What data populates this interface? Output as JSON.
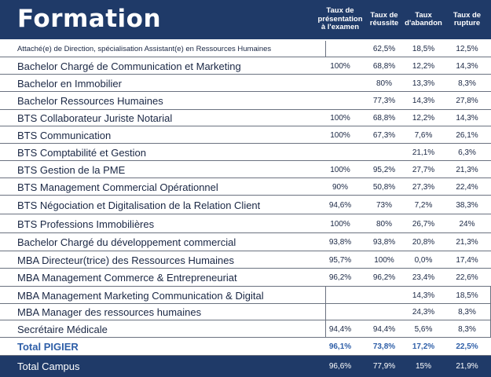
{
  "title": "Formation",
  "columns": [
    "Taux de\nprésentation\nà l'examen",
    "Taux de\nréussite",
    "Taux\nd'abandon",
    "Taux de\nrupture"
  ],
  "rows": [
    {
      "label": "Attaché(e) de Direction, spécialisation Assistant(e) en Ressources Humaines",
      "presentation": "",
      "reussite": "62,5%",
      "abandon": "18,5%",
      "rupture": "12,5%"
    },
    {
      "label": "Bachelor Chargé de Communication et Marketing",
      "presentation": "100%",
      "reussite": "68,8%",
      "abandon": "12,2%",
      "rupture": "14,3%"
    },
    {
      "label": "Bachelor en Immobilier",
      "presentation": "",
      "reussite": "80%",
      "abandon": "13,3%",
      "rupture": "8,3%"
    },
    {
      "label": "Bachelor Ressources Humaines",
      "presentation": "",
      "reussite": "77,3%",
      "abandon": "14,3%",
      "rupture": "27,8%"
    },
    {
      "label": "BTS Collaborateur Juriste Notarial",
      "presentation": "100%",
      "reussite": "68,8%",
      "abandon": "12,2%",
      "rupture": "14,3%"
    },
    {
      "label": "BTS Communication",
      "presentation": "100%",
      "reussite": "67,3%",
      "abandon": "7,6%",
      "rupture": "26,1%"
    },
    {
      "label": "BTS Comptabilité et Gestion",
      "presentation": "",
      "reussite": "",
      "abandon": "21,1%",
      "rupture": "6,3%"
    },
    {
      "label": "BTS Gestion de la PME",
      "presentation": "100%",
      "reussite": "95,2%",
      "abandon": "27,7%",
      "rupture": "21,3%"
    },
    {
      "label": "BTS Management Commercial Opérationnel",
      "presentation": "90%",
      "reussite": "50,8%",
      "abandon": "27,3%",
      "rupture": "22,4%"
    },
    {
      "label": "BTS Négociation et Digitalisation de la Relation Client",
      "presentation": "94,6%",
      "reussite": "73%",
      "abandon": "7,2%",
      "rupture": "38,3%"
    },
    {
      "label": "BTS Professions Immobilières",
      "presentation": "100%",
      "reussite": "80%",
      "abandon": "26,7%",
      "rupture": "24%"
    },
    {
      "label": "Bachelor Chargé du développement commercial",
      "presentation": "93,8%",
      "reussite": "93,8%",
      "abandon": "20,8%",
      "rupture": "21,3%"
    },
    {
      "label": "MBA Directeur(trice) des Ressources Humaines",
      "presentation": "95,7%",
      "reussite": "100%",
      "abandon": "0,0%",
      "rupture": "17,4%"
    },
    {
      "label": "MBA Management Commerce & Entrepreneuriat",
      "presentation": "96,2%",
      "reussite": "96,2%",
      "abandon": "23,4%",
      "rupture": "22,6%"
    },
    {
      "label": "MBA Management Marketing Communication & Digital",
      "presentation": "",
      "reussite": "",
      "abandon": "14,3%",
      "rupture": "18,5%"
    },
    {
      "label": "MBA Manager des ressources humaines",
      "presentation": "",
      "reussite": "",
      "abandon": "24,3%",
      "rupture": "8,3%"
    },
    {
      "label": "Secrétaire Médicale",
      "presentation": "94,4%",
      "reussite": "94,4%",
      "abandon": "5,6%",
      "rupture": "8,3%"
    }
  ],
  "total_pigier": {
    "label": "Total  PIGIER",
    "presentation": "96,1%",
    "reussite": "73,8%",
    "abandon": "17,2%",
    "rupture": "22,5%"
  },
  "total_campus": {
    "label": "Total  Campus",
    "presentation": "96,6%",
    "reussite": "77,9%",
    "abandon": "15%",
    "rupture": "21,9%"
  },
  "colors": {
    "header_bg": "#1f3a68",
    "text": "#1a2744",
    "total_pigier_text": "#2f5fa8",
    "campus_bg": "#1f3a68"
  }
}
